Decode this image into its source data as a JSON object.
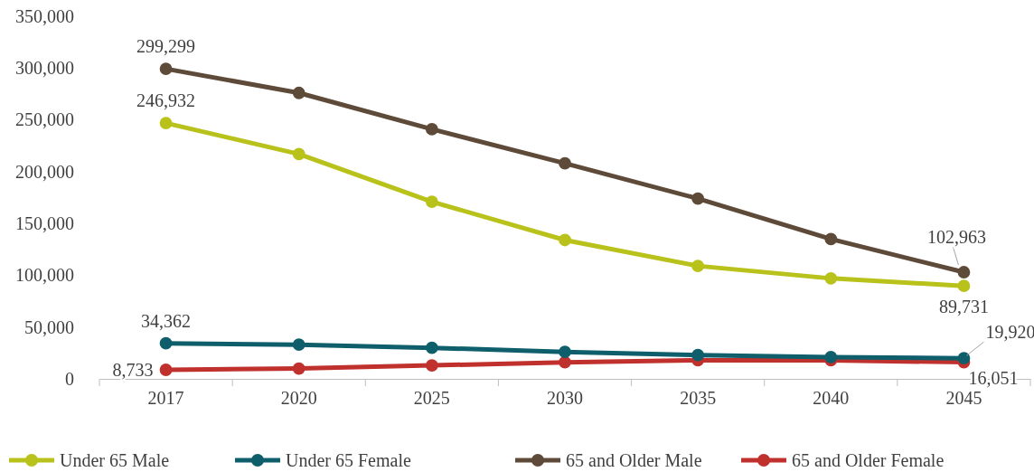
{
  "chart_data": {
    "type": "line",
    "categories": [
      "2017",
      "2020",
      "2025",
      "2030",
      "2035",
      "2040",
      "2045"
    ],
    "ylim": [
      0,
      350000
    ],
    "yticks": [
      {
        "value": 0,
        "label": "0"
      },
      {
        "value": 50000,
        "label": "50,000"
      },
      {
        "value": 100000,
        "label": "100,000"
      },
      {
        "value": 150000,
        "label": "150,000"
      },
      {
        "value": 200000,
        "label": "200,000"
      },
      {
        "value": 250000,
        "label": "250,000"
      },
      {
        "value": 300000,
        "label": "300,000"
      },
      {
        "value": 350000,
        "label": "350,000"
      }
    ],
    "series": [
      {
        "name": "Under 65 Male",
        "color": "#b8c21a",
        "values": [
          246932,
          217000,
          171000,
          134000,
          109000,
          97000,
          89731
        ],
        "value_labels": [
          "246,932",
          null,
          null,
          null,
          null,
          null,
          "89,731"
        ]
      },
      {
        "name": "Under 65 Female",
        "color": "#0e5f6b",
        "values": [
          34362,
          33000,
          30000,
          26000,
          23000,
          21000,
          19920
        ],
        "value_labels": [
          "34,362",
          null,
          null,
          null,
          null,
          null,
          "19,920"
        ]
      },
      {
        "name": "65 and Older Male",
        "color": "#5e4a38",
        "values": [
          299299,
          276000,
          241000,
          208000,
          174000,
          135000,
          102963
        ],
        "value_labels": [
          "299,299",
          null,
          null,
          null,
          null,
          null,
          "102,963"
        ]
      },
      {
        "name": "65 and Older Female",
        "color": "#c0312e",
        "values": [
          8733,
          10000,
          13000,
          16000,
          18000,
          18000,
          16051
        ],
        "value_labels": [
          "8,733",
          null,
          null,
          null,
          null,
          null,
          "16,051"
        ]
      }
    ],
    "marker": "circle",
    "grid": false,
    "legend": "bottom"
  }
}
